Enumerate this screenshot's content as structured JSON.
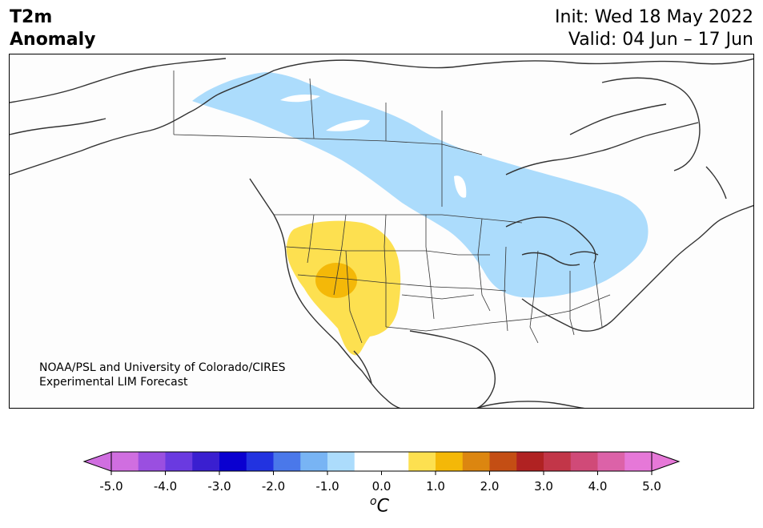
{
  "header": {
    "variable": "T2m",
    "subtitle": "Anomaly",
    "init": "Init: Wed 18 May 2022",
    "valid": "Valid: 04 Jun – 17 Jun"
  },
  "credit": {
    "line1": "NOAA/PSL and University of Colorado/CIRES",
    "line2": "Experimental LIM Forecast"
  },
  "colorbar": {
    "unit_base": "C",
    "unit_sup": "o",
    "tick_labels": [
      "-5.0",
      "-4.0",
      "-3.0",
      "-2.0",
      "-1.0",
      "0.0",
      "1.0",
      "2.0",
      "3.0",
      "4.0",
      "5.0"
    ],
    "colors": [
      "#d06ee0",
      "#9a4fe0",
      "#6a3ae0",
      "#3a1fd0",
      "#0a00d0",
      "#2233e0",
      "#4a78ea",
      "#78b4f4",
      "#acdcfc",
      "#ffffff",
      "#ffffff",
      "#fde050",
      "#f4b808",
      "#dc8610",
      "#c44e14",
      "#b02222",
      "#c23648",
      "#d04a78",
      "#dc62a8",
      "#e678d8"
    ],
    "extend_low_color": "#d06ee0",
    "extend_high_color": "#e678d8"
  },
  "map": {
    "region": "North America",
    "cold_anomaly_color": "#acdcfc",
    "warm_anomaly_color": "#fde050",
    "strong_warm_color": "#f4b808"
  }
}
